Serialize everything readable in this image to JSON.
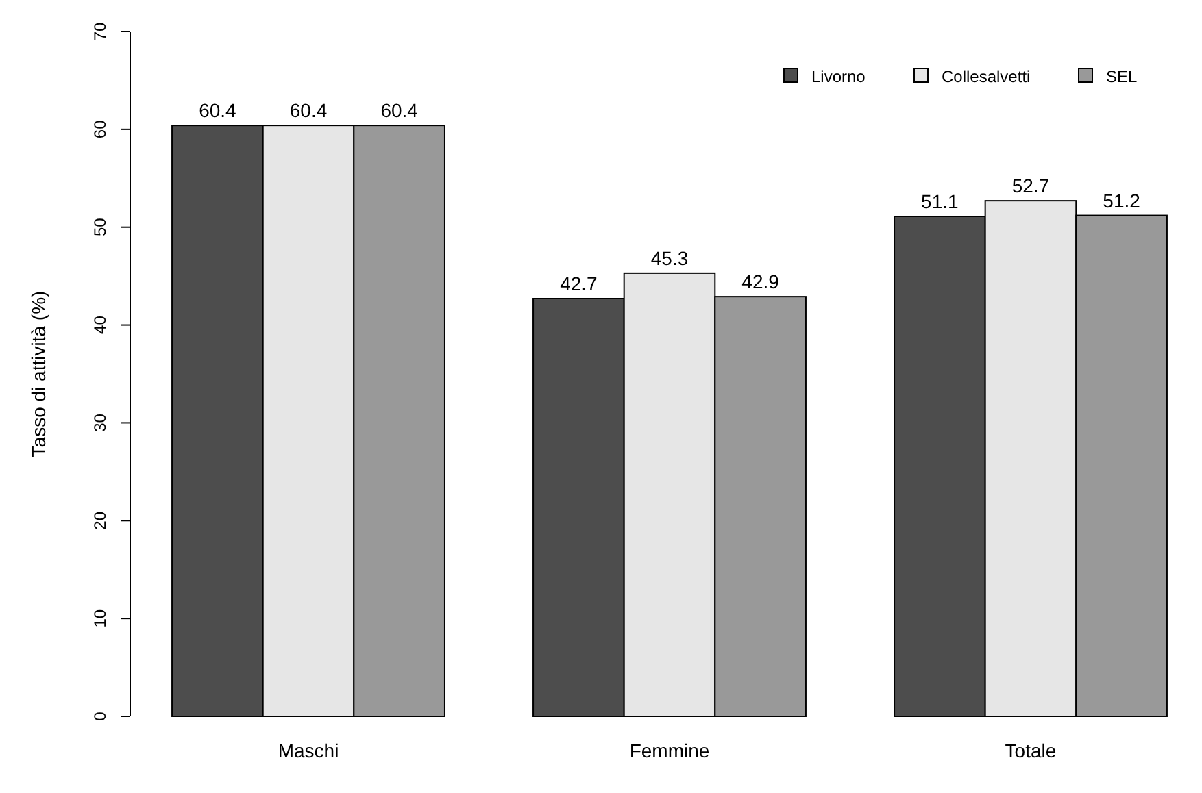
{
  "chart_data": {
    "type": "bar",
    "ylabel": "Tasso di attività (%)",
    "categories": [
      "Maschi",
      "Femmine",
      "Totale"
    ],
    "series": [
      {
        "name": "Livorno",
        "color": "#4d4d4d",
        "values": [
          60.4,
          42.7,
          51.1
        ]
      },
      {
        "name": "Collesalvetti",
        "color": "#e6e6e6",
        "values": [
          60.4,
          45.3,
          52.7
        ]
      },
      {
        "name": "SEL",
        "color": "#999999",
        "values": [
          60.4,
          42.9,
          51.2
        ]
      }
    ],
    "ylim": [
      0,
      70
    ],
    "yticks": [
      0,
      10,
      20,
      30,
      40,
      50,
      60,
      70
    ],
    "data_labels": true,
    "legend": "top right",
    "grid": false
  }
}
